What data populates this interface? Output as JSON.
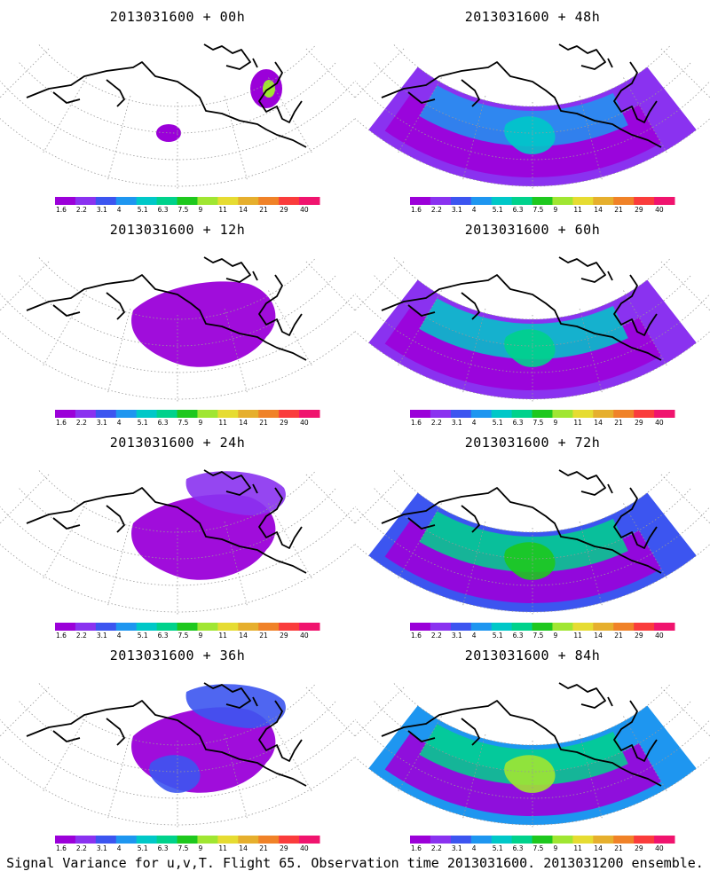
{
  "panels": [
    {
      "title": "2013031600 + 00h",
      "level": 0
    },
    {
      "title": "2013031600 + 48h",
      "level": 4
    },
    {
      "title": "2013031600 + 12h",
      "level": 1
    },
    {
      "title": "2013031600 + 60h",
      "level": 5
    },
    {
      "title": "2013031600 + 24h",
      "level": 2
    },
    {
      "title": "2013031600 + 72h",
      "level": 6
    },
    {
      "title": "2013031600 + 36h",
      "level": 3
    },
    {
      "title": "2013031600 + 84h",
      "level": 7
    }
  ],
  "colorbar": {
    "labels": [
      "1.6",
      "2.2",
      "3.1",
      "4",
      "5.1",
      "6.3",
      "7.5",
      "9",
      "11",
      "14",
      "21",
      "29",
      "40"
    ],
    "colors": [
      "#9b00d9",
      "#8a32f0",
      "#3c55f0",
      "#1e96f0",
      "#00c8c8",
      "#00d28c",
      "#1ec81e",
      "#a0e632",
      "#e6dc32",
      "#e6af2d",
      "#f08228",
      "#fa3c3c",
      "#f0146e"
    ]
  },
  "footer": "Signal Variance for u,v,T. Flight 65. Observation time 2013031600. 2013031200 ensemble."
}
